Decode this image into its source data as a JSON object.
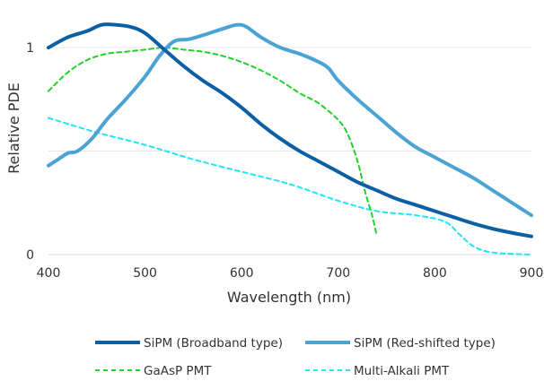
{
  "chart_data": {
    "type": "line",
    "title": "",
    "xlabel": "Wavelength (nm)",
    "ylabel": "Relative PDE",
    "xlim": [
      400,
      900
    ],
    "ylim": [
      0,
      1.1
    ],
    "x_ticks": [
      400,
      500,
      600,
      700,
      800,
      900
    ],
    "y_ticks": [
      0,
      1
    ],
    "grid": "horizontal",
    "legend_position": "bottom",
    "series": [
      {
        "name": "SiPM (Broadband type)",
        "color": "#0b5fa5",
        "style": "solid",
        "points": [
          [
            400,
            1.0
          ],
          [
            420,
            1.05
          ],
          [
            440,
            1.08
          ],
          [
            455,
            1.11
          ],
          [
            470,
            1.11
          ],
          [
            485,
            1.1
          ],
          [
            500,
            1.07
          ],
          [
            520,
            0.99
          ],
          [
            540,
            0.91
          ],
          [
            560,
            0.84
          ],
          [
            580,
            0.78
          ],
          [
            600,
            0.71
          ],
          [
            620,
            0.63
          ],
          [
            640,
            0.56
          ],
          [
            660,
            0.5
          ],
          [
            680,
            0.45
          ],
          [
            700,
            0.4
          ],
          [
            720,
            0.35
          ],
          [
            740,
            0.31
          ],
          [
            760,
            0.27
          ],
          [
            780,
            0.24
          ],
          [
            800,
            0.21
          ],
          [
            820,
            0.18
          ],
          [
            840,
            0.15
          ],
          [
            860,
            0.125
          ],
          [
            880,
            0.105
          ],
          [
            900,
            0.088
          ]
        ]
      },
      {
        "name": "SiPM (Red-shifted type)",
        "color": "#4aa3d2",
        "style": "solid",
        "points": [
          [
            400,
            0.43
          ],
          [
            410,
            0.46
          ],
          [
            420,
            0.49
          ],
          [
            430,
            0.5
          ],
          [
            445,
            0.56
          ],
          [
            460,
            0.65
          ],
          [
            480,
            0.75
          ],
          [
            500,
            0.86
          ],
          [
            515,
            0.96
          ],
          [
            530,
            1.03
          ],
          [
            545,
            1.04
          ],
          [
            560,
            1.06
          ],
          [
            580,
            1.09
          ],
          [
            595,
            1.11
          ],
          [
            605,
            1.1
          ],
          [
            620,
            1.05
          ],
          [
            640,
            1.0
          ],
          [
            660,
            0.97
          ],
          [
            680,
            0.93
          ],
          [
            690,
            0.9
          ],
          [
            700,
            0.84
          ],
          [
            720,
            0.75
          ],
          [
            740,
            0.67
          ],
          [
            760,
            0.59
          ],
          [
            780,
            0.52
          ],
          [
            800,
            0.47
          ],
          [
            820,
            0.42
          ],
          [
            840,
            0.37
          ],
          [
            860,
            0.31
          ],
          [
            880,
            0.25
          ],
          [
            900,
            0.19
          ]
        ]
      },
      {
        "name": "GaAsP PMT",
        "color": "#22d02a",
        "style": "dashed",
        "points": [
          [
            400,
            0.79
          ],
          [
            420,
            0.88
          ],
          [
            440,
            0.94
          ],
          [
            460,
            0.97
          ],
          [
            480,
            0.98
          ],
          [
            500,
            0.99
          ],
          [
            520,
            1.0
          ],
          [
            540,
            0.99
          ],
          [
            560,
            0.98
          ],
          [
            580,
            0.96
          ],
          [
            600,
            0.93
          ],
          [
            620,
            0.89
          ],
          [
            640,
            0.84
          ],
          [
            660,
            0.78
          ],
          [
            680,
            0.73
          ],
          [
            700,
            0.65
          ],
          [
            710,
            0.58
          ],
          [
            720,
            0.45
          ],
          [
            728,
            0.3
          ],
          [
            735,
            0.19
          ],
          [
            740,
            0.09
          ]
        ]
      },
      {
        "name": "Multi-Alkali PMT",
        "color": "#22e4f4",
        "style": "dashed",
        "points": [
          [
            400,
            0.66
          ],
          [
            450,
            0.59
          ],
          [
            500,
            0.53
          ],
          [
            550,
            0.46
          ],
          [
            600,
            0.4
          ],
          [
            650,
            0.34
          ],
          [
            700,
            0.26
          ],
          [
            740,
            0.21
          ],
          [
            780,
            0.19
          ],
          [
            810,
            0.16
          ],
          [
            825,
            0.1
          ],
          [
            840,
            0.04
          ],
          [
            860,
            0.01
          ],
          [
            900,
            0.0
          ]
        ]
      }
    ]
  }
}
